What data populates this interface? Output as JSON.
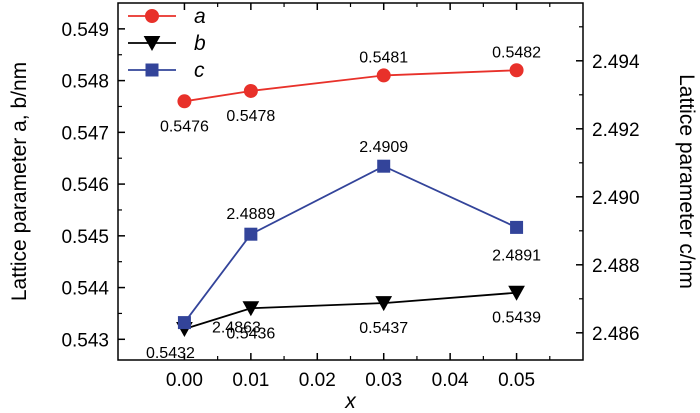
{
  "chart_data": {
    "type": "line",
    "x": [
      0.0,
      0.01,
      0.03,
      0.05
    ],
    "xlabel": "x",
    "ylabel_left": "Lattice parameter a, b/nm",
    "ylabel_right": "Lattice parameter c/nm",
    "xlim": [
      -0.01,
      0.06
    ],
    "ylim_left": [
      0.5426,
      0.5495
    ],
    "ylim_right": [
      2.4852,
      2.4957
    ],
    "x_ticks": [
      "0.00",
      "0.01",
      "0.02",
      "0.03",
      "0.04",
      "0.05"
    ],
    "y_left_ticks": [
      "0.543",
      "0.544",
      "0.545",
      "0.546",
      "0.547",
      "0.548",
      "0.549"
    ],
    "y_right_ticks": [
      "2.486",
      "2.488",
      "2.490",
      "2.492",
      "2.494"
    ],
    "legend_position": "top-left",
    "series": [
      {
        "name": "a",
        "axis": "left",
        "values": [
          0.5476,
          0.5478,
          0.5481,
          0.5482
        ],
        "labels": [
          "0.5476",
          "0.5478",
          "0.5481",
          "0.5482"
        ],
        "color": "#e8312a",
        "marker": "circle"
      },
      {
        "name": "b",
        "axis": "left",
        "values": [
          0.5432,
          0.5436,
          0.5437,
          0.5439
        ],
        "labels": [
          "0.5432",
          "0.5436",
          "0.5437",
          "0.5439"
        ],
        "color": "#000000",
        "marker": "triangle-down"
      },
      {
        "name": "c",
        "axis": "right",
        "values": [
          2.4863,
          2.4889,
          2.4909,
          2.4891
        ],
        "labels": [
          "2.4863",
          "2.4889",
          "2.4909",
          "2.4891"
        ],
        "color": "#33449a",
        "marker": "square"
      }
    ]
  }
}
